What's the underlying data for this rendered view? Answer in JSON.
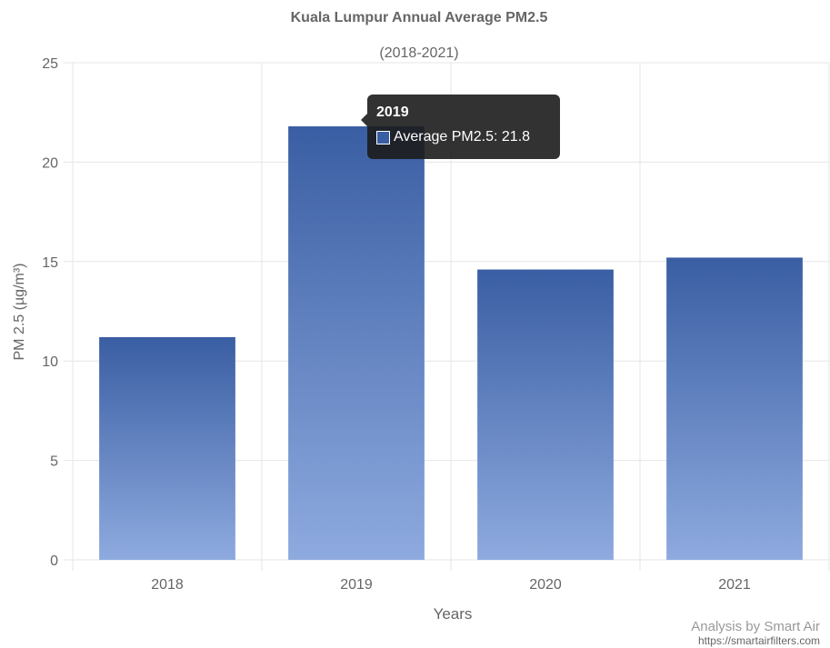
{
  "chart_data": {
    "type": "bar",
    "title": "Kuala Lumpur Annual Average PM2.5",
    "subtitle": "(2018-2021)",
    "xlabel": "Years",
    "ylabel": "PM 2.5 (µg/m³)",
    "categories": [
      "2018",
      "2019",
      "2020",
      "2021"
    ],
    "series": [
      {
        "name": "Average PM2.5",
        "values": [
          11.2,
          21.8,
          14.6,
          15.2
        ]
      }
    ],
    "ylim": [
      0,
      25
    ],
    "yticks": [
      "0",
      "5",
      "10",
      "15",
      "20",
      "25"
    ],
    "grid": true,
    "legend": "none",
    "colors": {
      "bar_top": "#3a5ea3",
      "bar_bottom": "#8eaadf",
      "grid": "#e6e6e6",
      "tooltip_swatch": "#3a5ea3"
    }
  },
  "tooltip": {
    "title": "2019",
    "label": "Average PM2.5",
    "value": "21.8"
  },
  "credit": {
    "line1": "Analysis by Smart Air",
    "line2": "https://smartairfilters.com"
  }
}
